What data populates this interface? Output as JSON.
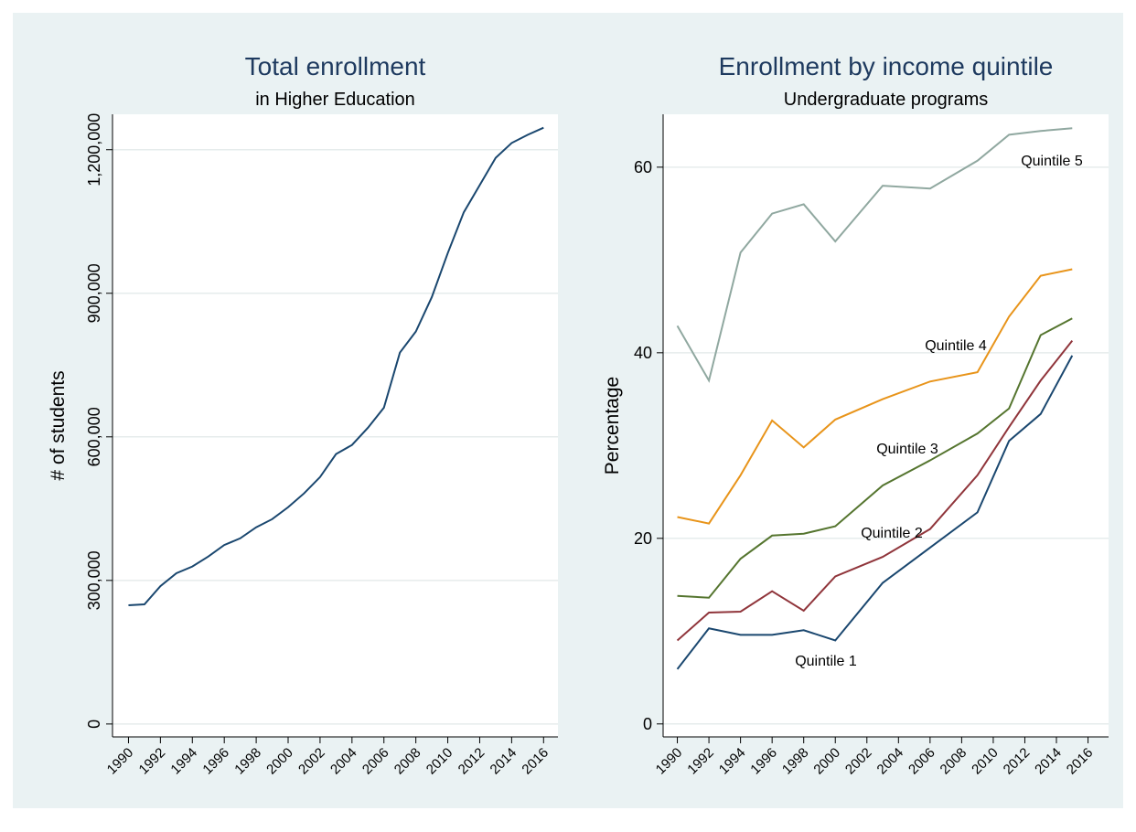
{
  "chart_data": [
    {
      "type": "line",
      "title": "Total enrollment",
      "subtitle": "in Higher Education",
      "y_label": "# of students",
      "x": [
        1990,
        1991,
        1992,
        1993,
        1994,
        1995,
        1996,
        1997,
        1998,
        1999,
        2000,
        2001,
        2002,
        2003,
        2004,
        2005,
        2006,
        2007,
        2008,
        2009,
        2010,
        2011,
        2012,
        2013,
        2014,
        2015,
        2016
      ],
      "values": [
        248000,
        250000,
        288000,
        315000,
        329000,
        350000,
        374000,
        388000,
        411000,
        428000,
        453000,
        482000,
        516000,
        564000,
        583000,
        619000,
        661000,
        776000,
        820000,
        892000,
        984000,
        1069000,
        1126000,
        1183000,
        1214000,
        1231000,
        1246000
      ],
      "color": "#1a476f",
      "xlim": [
        1989,
        2016.9
      ],
      "xticks": [
        1990,
        1992,
        1994,
        1996,
        1998,
        2000,
        2002,
        2004,
        2006,
        2008,
        2010,
        2012,
        2014,
        2016
      ],
      "ylim": [
        -27000,
        1274000
      ],
      "yticks": [
        0,
        {
          "value": 300000,
          "label": "300,000"
        },
        {
          "value": 600000,
          "label": "600,000"
        },
        {
          "value": 900000,
          "label": "900,000"
        },
        {
          "value": 1200000,
          "label": "1,200,000"
        }
      ],
      "grid": true
    },
    {
      "type": "line",
      "title": "Enrollment by income quintile",
      "subtitle": "Undergraduate programs",
      "y_label": "Percentage",
      "x": [
        1990,
        1992,
        1994,
        1996,
        1998,
        2000,
        2003,
        2006,
        2009,
        2011,
        2013,
        2015
      ],
      "series": [
        {
          "name": "Quintile 5",
          "color": "#90a8a0",
          "values": [
            42.9,
            37.0,
            50.8,
            55.0,
            56.0,
            52.0,
            58.0,
            57.7,
            60.7,
            63.5,
            63.9,
            64.2
          ]
        },
        {
          "name": "Quintile 4",
          "color": "#e8941a",
          "values": [
            22.3,
            21.6,
            26.8,
            32.7,
            29.8,
            32.8,
            35.0,
            36.9,
            37.9,
            43.9,
            48.3,
            49.0
          ]
        },
        {
          "name": "Quintile 3",
          "color": "#55752f",
          "values": [
            13.8,
            13.6,
            17.8,
            20.3,
            20.5,
            21.3,
            25.7,
            28.4,
            31.3,
            34.0,
            41.9,
            43.7
          ]
        },
        {
          "name": "Quintile 2",
          "color": "#90353b",
          "values": [
            9.0,
            12.0,
            12.1,
            14.3,
            12.2,
            15.9,
            18.0,
            21.0,
            26.8,
            32.0,
            37.0,
            41.3
          ]
        },
        {
          "name": "Quintile 1",
          "color": "#1a476f",
          "values": [
            5.9,
            10.3,
            9.6,
            9.6,
            10.1,
            9.0,
            15.2,
            19.0,
            22.8,
            30.5,
            33.4,
            39.7
          ]
        }
      ],
      "xlim": [
        1989.1,
        2017.3
      ],
      "xticks": [
        1990,
        1992,
        1994,
        1996,
        1998,
        2000,
        2002,
        2004,
        2006,
        2008,
        2010,
        2012,
        2014,
        2016
      ],
      "ylim": [
        -1.4,
        65.7
      ],
      "yticks": [
        0,
        20,
        40,
        60
      ],
      "grid": true
    }
  ]
}
